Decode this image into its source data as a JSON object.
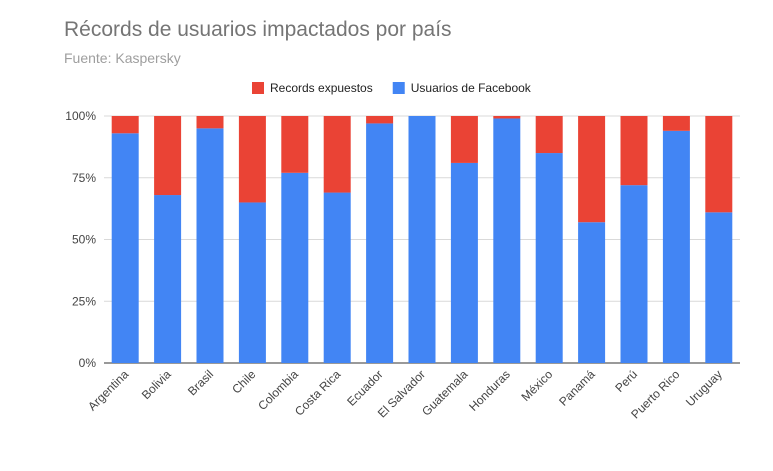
{
  "chart_data": {
    "type": "bar",
    "stacked": "percent",
    "title": "Récords de usuarios impactados por país",
    "subtitle": "Fuente: Kaspersky",
    "categories": [
      "Argentina",
      "Bolivia",
      "Brasil",
      "Chile",
      "Colombia",
      "Costa Rica",
      "Ecuador",
      "El Salvador",
      "Guatemala",
      "Honduras",
      "México",
      "Panamá",
      "Perú",
      "Puerto Rico",
      "Uruguay"
    ],
    "series": [
      {
        "name": "Usuarios de Facebook",
        "color": "#4285f4",
        "values": [
          93,
          68,
          95,
          65,
          77,
          69,
          97,
          100,
          81,
          99,
          85,
          57,
          72,
          94,
          61
        ]
      },
      {
        "name": "Records expuestos",
        "color": "#ea4335",
        "values": [
          7,
          32,
          5,
          35,
          23,
          31,
          3,
          0,
          19,
          1,
          15,
          43,
          28,
          6,
          39
        ]
      }
    ],
    "y_ticks": [
      "0%",
      "25%",
      "50%",
      "75%",
      "100%"
    ],
    "ylim": [
      0,
      100
    ],
    "legend": {
      "position": "top",
      "order": [
        "Records expuestos",
        "Usuarios de Facebook"
      ]
    },
    "grid": true
  }
}
